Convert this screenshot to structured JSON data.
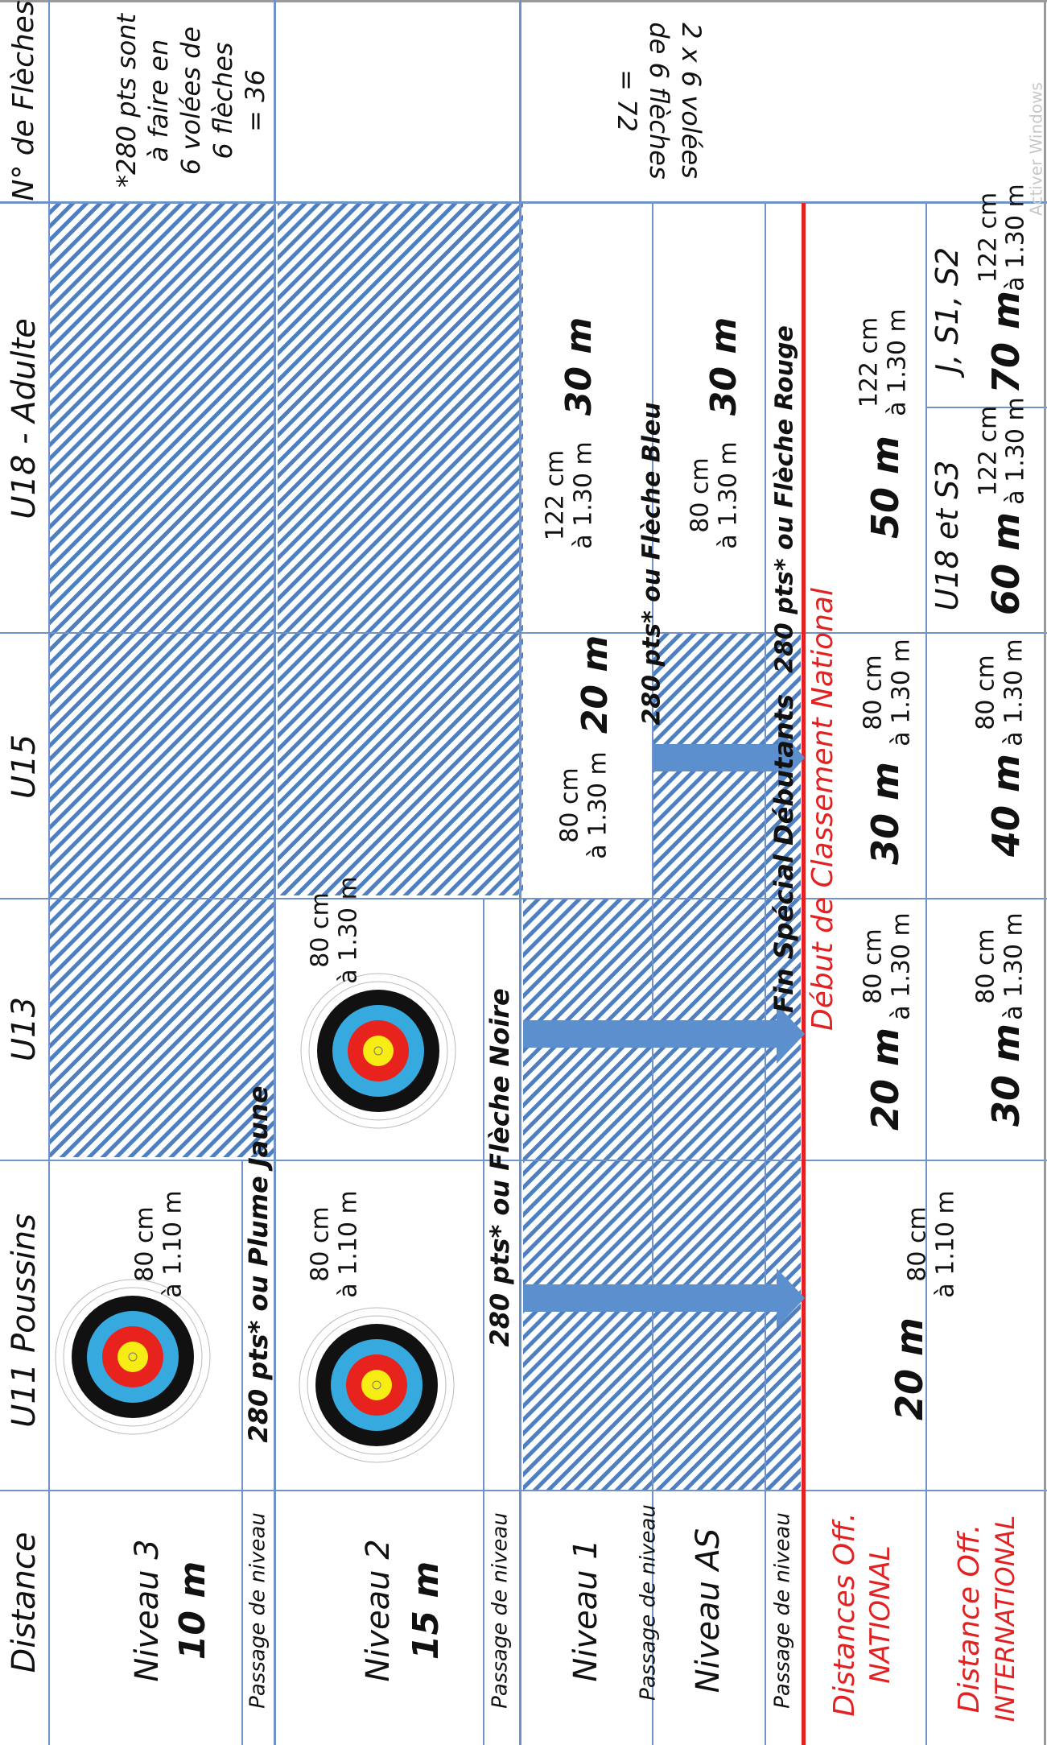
{
  "headers": {
    "distance": "Distance",
    "u11": "U11 Poussins",
    "u13": "U13",
    "u15": "U15",
    "u18_adulte": "U18    -    Adulte",
    "nb_fleches": "N° de Flèches"
  },
  "rows": {
    "niveau3": {
      "label": "Niveau 3",
      "dist": "10 m"
    },
    "niveau2": {
      "label": "Niveau 2",
      "dist": "15 m"
    },
    "niveau1": {
      "label": "Niveau 1"
    },
    "niveau_as": {
      "label": "Niveau AS"
    },
    "passage": "Passage de niveau",
    "off_national": {
      "line1": "Distances Off.",
      "line2": "NATIONAL"
    },
    "off_international": {
      "line1": "Distance Off.",
      "line2": "INTERNATIONAL"
    }
  },
  "targets": {
    "u11_n3": {
      "size": "80 cm",
      "height": "à 1.10 m"
    },
    "u11_n2": {
      "size": "80 cm",
      "height": "à 1.10 m"
    },
    "u13_n2": {
      "size": "80 cm",
      "height": "à 1.30 m"
    },
    "u11_nat": {
      "dist": "20 m",
      "size": "80 cm",
      "height": "à 1.10 m"
    },
    "u15_n1": {
      "dist": "20 m",
      "size": "80 cm",
      "height": "à 1.30 m"
    },
    "adult_n1": {
      "dist": "30 m",
      "size": "122 cm",
      "height": "à 1.30 m"
    },
    "adult_as": {
      "dist": "30 m",
      "size": "80 cm",
      "height": "à 1.30 m"
    },
    "u13_nat": {
      "dist": "20 m",
      "size": "80 cm",
      "height": "à 1.30 m"
    },
    "u15_nat": {
      "dist": "30 m",
      "size": "80 cm",
      "height": "à 1.30 m"
    },
    "adult_nat": {
      "dist": "50 m",
      "size": "122 cm",
      "height": "à 1.30 m"
    },
    "u13_int": {
      "dist": "30 m",
      "size": "80 cm",
      "height": "à 1.30 m"
    },
    "u15_int": {
      "dist": "40 m",
      "size": "80 cm",
      "height": "à 1.30 m"
    },
    "u18s3_int": {
      "cat": "U18 et S3",
      "dist": "60 m",
      "size": "122 cm",
      "height": "à 1.30 m"
    },
    "js_int": {
      "cat": "J, S1, S2",
      "dist": "70 m",
      "size": "122 cm",
      "height": "à 1.30 m"
    }
  },
  "passages": {
    "plume_jaune": "280 pts* ou Plume Jaune",
    "fleche_noire": "280 pts* ou Flèche Noire",
    "fleche_bleu": "280 pts* ou Flèche Bleu",
    "fleche_rouge": "280 pts* ou Flèche Rouge",
    "fin_debutants": "Fin Spécial Débutants",
    "debut_classement": "Début de Classement National"
  },
  "fleches": {
    "note1": "*280 pts sont",
    "note2": "à faire en",
    "note3": "6 volées de",
    "note4": "6 flèches",
    "note5": "= 36",
    "total1": "2 x 6 volées",
    "total2": "de 6 flèches",
    "total3": "= 72"
  },
  "watermark": "Activer Windows",
  "colors": {
    "grid": "#6f93c9",
    "hatch": "#4d7fc1",
    "arrow": "#5b8fce",
    "red": "#e22222"
  }
}
